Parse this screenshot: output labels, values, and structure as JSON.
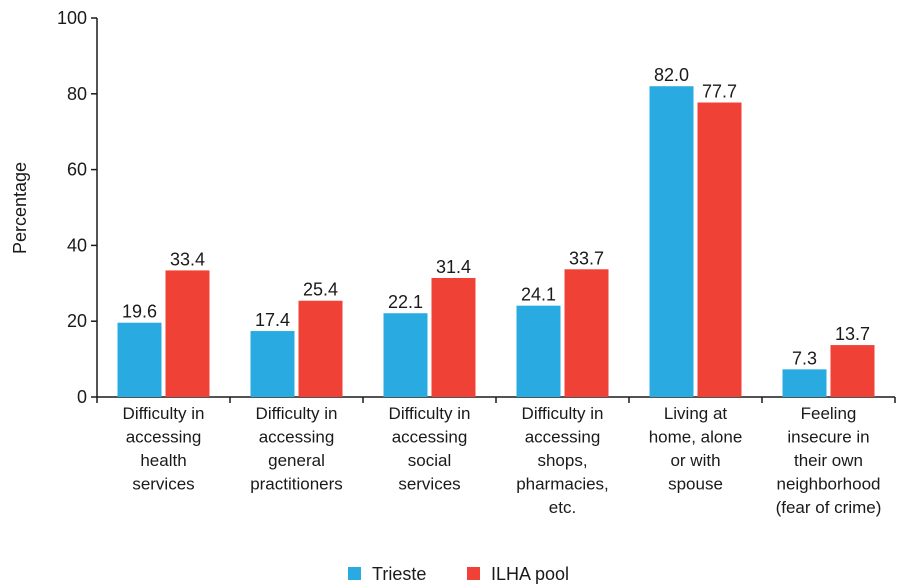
{
  "chart_data": {
    "type": "bar",
    "title": "",
    "xlabel": "",
    "ylabel": "Percentage",
    "ylim": [
      0,
      100
    ],
    "yticks": [
      "0",
      "20",
      "40",
      "60",
      "80",
      "100"
    ],
    "grid": false,
    "legend_position": "bottom",
    "categories": [
      [
        "Difficulty in",
        "accessing",
        "health",
        "services"
      ],
      [
        "Difficulty in",
        "accessing",
        "general",
        "practitioners"
      ],
      [
        "Difficulty in",
        "accessing",
        "social",
        "services"
      ],
      [
        "Difficulty in",
        "accessing",
        "shops,",
        "pharmacies,",
        "etc."
      ],
      [
        "Living at",
        "home, alone",
        "or with",
        "spouse"
      ],
      [
        "Feeling",
        "insecure in",
        "their own",
        "neighborhood",
        "(fear of crime)"
      ]
    ],
    "series": [
      {
        "name": "Trieste",
        "color": "#29abe2",
        "values": [
          19.6,
          17.4,
          22.1,
          24.1,
          82.0,
          7.3
        ],
        "labels": [
          "19.6",
          "17.4",
          "22.1",
          "24.1",
          "82.0",
          "7.3"
        ]
      },
      {
        "name": "ILHA pool",
        "color": "#ef4136",
        "values": [
          33.4,
          25.4,
          31.4,
          33.7,
          77.7,
          13.7
        ],
        "labels": [
          "33.4",
          "25.4",
          "31.4",
          "33.7",
          "77.7",
          "13.7"
        ]
      }
    ]
  }
}
